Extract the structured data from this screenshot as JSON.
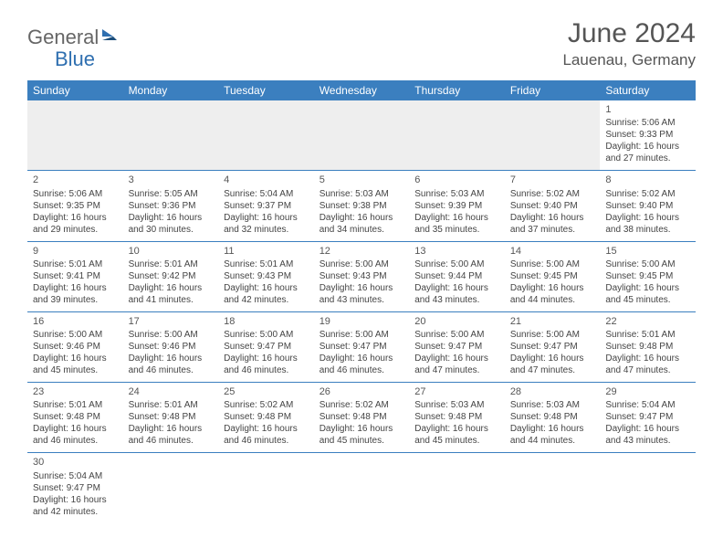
{
  "logo": {
    "part1": "General",
    "part2": "Blue"
  },
  "title": "June 2024",
  "location": "Lauenau, Germany",
  "header_bg": "#3b7fbf",
  "header_text_color": "#ffffff",
  "accent_color": "#3b7fbf",
  "empty_bg": "#eeeeee",
  "dayNames": [
    "Sunday",
    "Monday",
    "Tuesday",
    "Wednesday",
    "Thursday",
    "Friday",
    "Saturday"
  ],
  "weeks": [
    [
      null,
      null,
      null,
      null,
      null,
      null,
      {
        "n": "1",
        "sr": "Sunrise: 5:06 AM",
        "ss": "Sunset: 9:33 PM",
        "d1": "Daylight: 16 hours",
        "d2": "and 27 minutes."
      }
    ],
    [
      {
        "n": "2",
        "sr": "Sunrise: 5:06 AM",
        "ss": "Sunset: 9:35 PM",
        "d1": "Daylight: 16 hours",
        "d2": "and 29 minutes."
      },
      {
        "n": "3",
        "sr": "Sunrise: 5:05 AM",
        "ss": "Sunset: 9:36 PM",
        "d1": "Daylight: 16 hours",
        "d2": "and 30 minutes."
      },
      {
        "n": "4",
        "sr": "Sunrise: 5:04 AM",
        "ss": "Sunset: 9:37 PM",
        "d1": "Daylight: 16 hours",
        "d2": "and 32 minutes."
      },
      {
        "n": "5",
        "sr": "Sunrise: 5:03 AM",
        "ss": "Sunset: 9:38 PM",
        "d1": "Daylight: 16 hours",
        "d2": "and 34 minutes."
      },
      {
        "n": "6",
        "sr": "Sunrise: 5:03 AM",
        "ss": "Sunset: 9:39 PM",
        "d1": "Daylight: 16 hours",
        "d2": "and 35 minutes."
      },
      {
        "n": "7",
        "sr": "Sunrise: 5:02 AM",
        "ss": "Sunset: 9:40 PM",
        "d1": "Daylight: 16 hours",
        "d2": "and 37 minutes."
      },
      {
        "n": "8",
        "sr": "Sunrise: 5:02 AM",
        "ss": "Sunset: 9:40 PM",
        "d1": "Daylight: 16 hours",
        "d2": "and 38 minutes."
      }
    ],
    [
      {
        "n": "9",
        "sr": "Sunrise: 5:01 AM",
        "ss": "Sunset: 9:41 PM",
        "d1": "Daylight: 16 hours",
        "d2": "and 39 minutes."
      },
      {
        "n": "10",
        "sr": "Sunrise: 5:01 AM",
        "ss": "Sunset: 9:42 PM",
        "d1": "Daylight: 16 hours",
        "d2": "and 41 minutes."
      },
      {
        "n": "11",
        "sr": "Sunrise: 5:01 AM",
        "ss": "Sunset: 9:43 PM",
        "d1": "Daylight: 16 hours",
        "d2": "and 42 minutes."
      },
      {
        "n": "12",
        "sr": "Sunrise: 5:00 AM",
        "ss": "Sunset: 9:43 PM",
        "d1": "Daylight: 16 hours",
        "d2": "and 43 minutes."
      },
      {
        "n": "13",
        "sr": "Sunrise: 5:00 AM",
        "ss": "Sunset: 9:44 PM",
        "d1": "Daylight: 16 hours",
        "d2": "and 43 minutes."
      },
      {
        "n": "14",
        "sr": "Sunrise: 5:00 AM",
        "ss": "Sunset: 9:45 PM",
        "d1": "Daylight: 16 hours",
        "d2": "and 44 minutes."
      },
      {
        "n": "15",
        "sr": "Sunrise: 5:00 AM",
        "ss": "Sunset: 9:45 PM",
        "d1": "Daylight: 16 hours",
        "d2": "and 45 minutes."
      }
    ],
    [
      {
        "n": "16",
        "sr": "Sunrise: 5:00 AM",
        "ss": "Sunset: 9:46 PM",
        "d1": "Daylight: 16 hours",
        "d2": "and 45 minutes."
      },
      {
        "n": "17",
        "sr": "Sunrise: 5:00 AM",
        "ss": "Sunset: 9:46 PM",
        "d1": "Daylight: 16 hours",
        "d2": "and 46 minutes."
      },
      {
        "n": "18",
        "sr": "Sunrise: 5:00 AM",
        "ss": "Sunset: 9:47 PM",
        "d1": "Daylight: 16 hours",
        "d2": "and 46 minutes."
      },
      {
        "n": "19",
        "sr": "Sunrise: 5:00 AM",
        "ss": "Sunset: 9:47 PM",
        "d1": "Daylight: 16 hours",
        "d2": "and 46 minutes."
      },
      {
        "n": "20",
        "sr": "Sunrise: 5:00 AM",
        "ss": "Sunset: 9:47 PM",
        "d1": "Daylight: 16 hours",
        "d2": "and 47 minutes."
      },
      {
        "n": "21",
        "sr": "Sunrise: 5:00 AM",
        "ss": "Sunset: 9:47 PM",
        "d1": "Daylight: 16 hours",
        "d2": "and 47 minutes."
      },
      {
        "n": "22",
        "sr": "Sunrise: 5:01 AM",
        "ss": "Sunset: 9:48 PM",
        "d1": "Daylight: 16 hours",
        "d2": "and 47 minutes."
      }
    ],
    [
      {
        "n": "23",
        "sr": "Sunrise: 5:01 AM",
        "ss": "Sunset: 9:48 PM",
        "d1": "Daylight: 16 hours",
        "d2": "and 46 minutes."
      },
      {
        "n": "24",
        "sr": "Sunrise: 5:01 AM",
        "ss": "Sunset: 9:48 PM",
        "d1": "Daylight: 16 hours",
        "d2": "and 46 minutes."
      },
      {
        "n": "25",
        "sr": "Sunrise: 5:02 AM",
        "ss": "Sunset: 9:48 PM",
        "d1": "Daylight: 16 hours",
        "d2": "and 46 minutes."
      },
      {
        "n": "26",
        "sr": "Sunrise: 5:02 AM",
        "ss": "Sunset: 9:48 PM",
        "d1": "Daylight: 16 hours",
        "d2": "and 45 minutes."
      },
      {
        "n": "27",
        "sr": "Sunrise: 5:03 AM",
        "ss": "Sunset: 9:48 PM",
        "d1": "Daylight: 16 hours",
        "d2": "and 45 minutes."
      },
      {
        "n": "28",
        "sr": "Sunrise: 5:03 AM",
        "ss": "Sunset: 9:48 PM",
        "d1": "Daylight: 16 hours",
        "d2": "and 44 minutes."
      },
      {
        "n": "29",
        "sr": "Sunrise: 5:04 AM",
        "ss": "Sunset: 9:47 PM",
        "d1": "Daylight: 16 hours",
        "d2": "and 43 minutes."
      }
    ],
    [
      {
        "n": "30",
        "sr": "Sunrise: 5:04 AM",
        "ss": "Sunset: 9:47 PM",
        "d1": "Daylight: 16 hours",
        "d2": "and 42 minutes."
      },
      null,
      null,
      null,
      null,
      null,
      null
    ]
  ]
}
